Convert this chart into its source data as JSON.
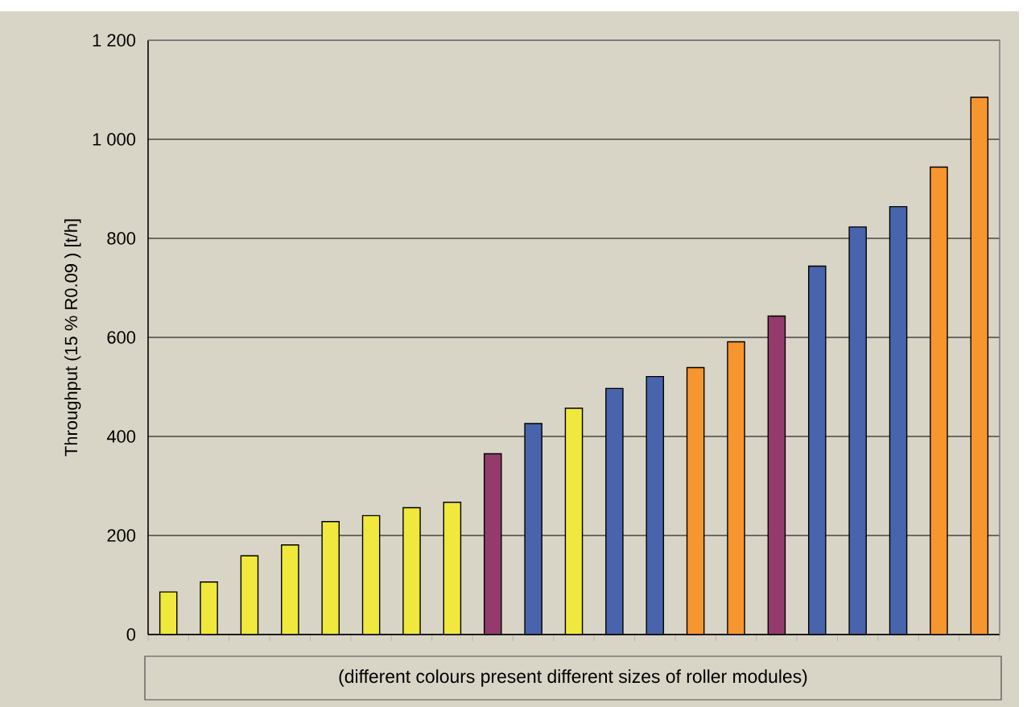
{
  "chart_data": {
    "type": "bar",
    "annotations": [
      "(different colours present different sizes of roller modules)"
    ],
    "ylabel": "Throughput (15 % R0.09 ) [t/h]",
    "categories": [
      null,
      null,
      null,
      null,
      null,
      null,
      null,
      null,
      null,
      null,
      null,
      null,
      null,
      null,
      null,
      null,
      null,
      null,
      null,
      null,
      null
    ],
    "values": [
      86,
      106,
      159,
      181,
      228,
      240,
      256,
      267,
      365,
      426,
      457,
      497,
      521,
      539,
      591,
      643,
      744,
      823,
      864,
      944,
      1085
    ],
    "colors": [
      "#f0e83c",
      "#f0e83c",
      "#f0e83c",
      "#f0e83c",
      "#f0e83c",
      "#f0e83c",
      "#f0e83c",
      "#f0e83c",
      "#943b6e",
      "#4764ac",
      "#f0e83c",
      "#4764ac",
      "#4764ac",
      "#f7962e",
      "#f7962e",
      "#943b6e",
      "#4764ac",
      "#4764ac",
      "#4764ac",
      "#f7962e",
      "#f7962e"
    ],
    "ylim": [
      0,
      1200
    ],
    "yticks": [
      0,
      200,
      400,
      600,
      800,
      {
        "value": 1000,
        "label": "1 000"
      },
      {
        "value": 1200,
        "label": "1 200"
      }
    ],
    "grid": "y"
  }
}
